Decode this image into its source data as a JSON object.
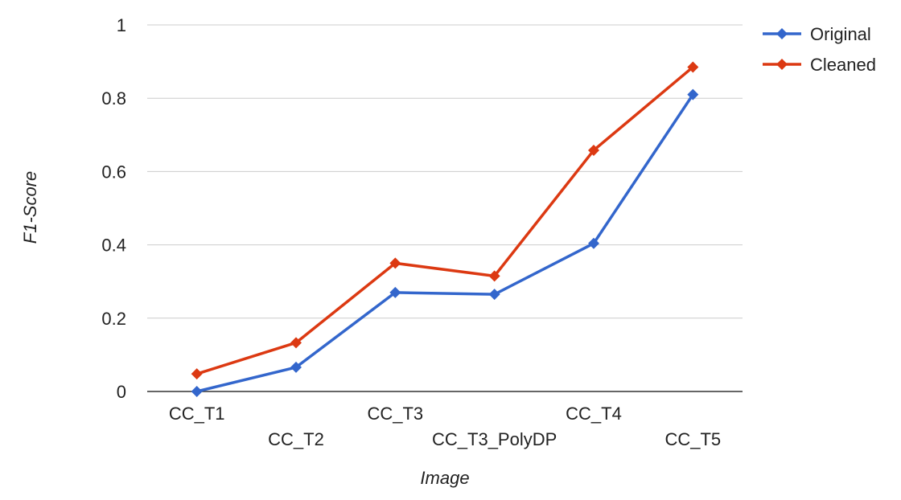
{
  "chart_data": {
    "type": "line",
    "title": "",
    "xlabel": "Image",
    "ylabel": "F1-Score",
    "categories": [
      "CC_T1",
      "CC_T2",
      "CC_T3",
      "CC_T3_PolyDP",
      "CC_T4",
      "CC_T5"
    ],
    "series": [
      {
        "name": "Original",
        "values": [
          0.0,
          0.066,
          0.27,
          0.265,
          0.404,
          0.81
        ],
        "color": "#3366cc",
        "marker": "diamond"
      },
      {
        "name": "Cleaned",
        "values": [
          0.048,
          0.133,
          0.35,
          0.315,
          0.658,
          0.885
        ],
        "color": "#dc3912",
        "marker": "diamond"
      }
    ],
    "ylim": [
      0,
      1
    ],
    "yticks": [
      "0",
      "0.2",
      "0.4",
      "0.6",
      "0.8",
      "1"
    ],
    "grid": true,
    "legend_position": "top-right"
  }
}
